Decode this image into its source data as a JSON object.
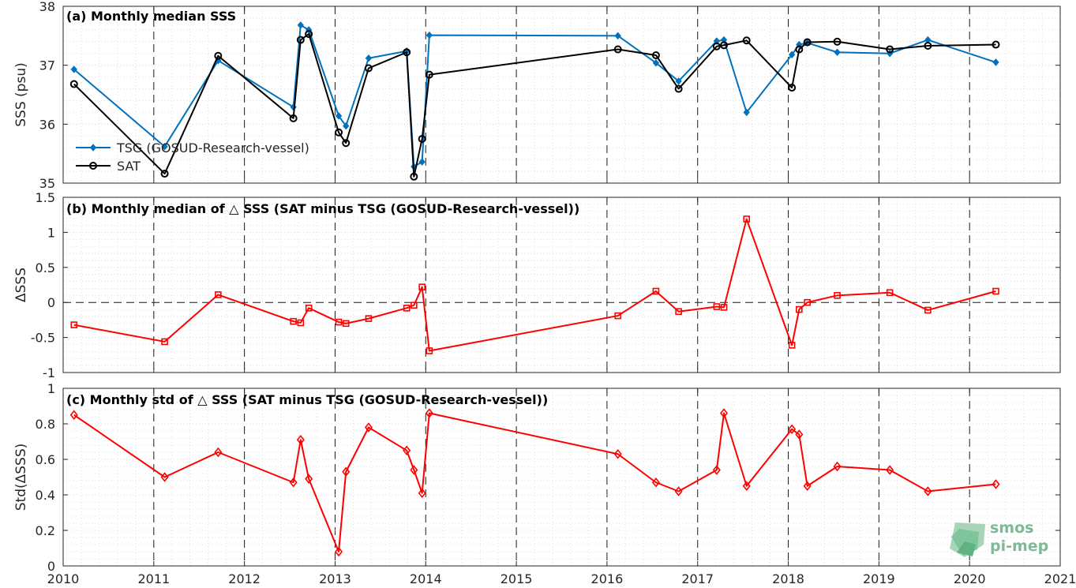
{
  "logo": {
    "line1": "smos",
    "line2": "pi-mep"
  },
  "chart_data": [
    {
      "type": "line",
      "title": "(a) Monthly median SSS",
      "ylabel": "SSS (psu)",
      "xlim": [
        2010,
        2021
      ],
      "ylim": [
        35,
        38
      ],
      "yticks": [
        35,
        36,
        37,
        38
      ],
      "ytick_labels": [
        "35",
        "36",
        "37",
        "38"
      ],
      "grid": true,
      "legend_position": "lower-left",
      "series": [
        {
          "name": "TSG (GOSUD-Research-vessel)",
          "color": "#0072BD",
          "marker": "diamond",
          "x": [
            2010.12,
            2011.12,
            2011.71,
            2012.54,
            2012.62,
            2012.71,
            2013.04,
            2013.12,
            2013.37,
            2013.79,
            2013.87,
            2013.96,
            2014.04,
            2016.12,
            2016.54,
            2016.79,
            2017.21,
            2017.29,
            2017.54,
            2018.04,
            2018.12,
            2018.21,
            2018.54,
            2019.12,
            2019.54,
            2020.29
          ],
          "values": [
            36.93,
            35.62,
            37.08,
            36.29,
            37.68,
            37.6,
            36.14,
            35.97,
            37.12,
            37.24,
            35.28,
            35.36,
            37.51,
            37.5,
            37.04,
            36.73,
            37.41,
            37.43,
            36.2,
            37.18,
            37.35,
            37.38,
            37.22,
            37.2,
            37.43,
            37.05
          ]
        },
        {
          "name": "SAT",
          "color": "#000000",
          "marker": "circle",
          "x": [
            2010.12,
            2011.12,
            2011.71,
            2012.54,
            2012.62,
            2012.71,
            2013.04,
            2013.12,
            2013.37,
            2013.79,
            2013.87,
            2013.96,
            2014.04,
            2016.12,
            2016.54,
            2016.79,
            2017.21,
            2017.29,
            2017.54,
            2018.04,
            2018.12,
            2018.21,
            2018.54,
            2019.12,
            2019.54,
            2020.29
          ],
          "values": [
            36.68,
            35.16,
            37.16,
            36.1,
            37.43,
            37.53,
            35.86,
            35.68,
            36.95,
            37.22,
            35.11,
            35.75,
            36.84,
            37.27,
            37.17,
            36.6,
            37.32,
            37.34,
            37.42,
            36.62,
            37.27,
            37.39,
            37.4,
            37.27,
            37.33,
            37.35
          ]
        }
      ]
    },
    {
      "type": "line",
      "title": "(b) Monthly median of △ SSS (SAT minus TSG (GOSUD-Research-vessel))",
      "ylabel": "ΔSSS",
      "xlim": [
        2010,
        2021
      ],
      "ylim": [
        -1,
        1.5
      ],
      "yticks": [
        -1,
        -0.5,
        0,
        0.5,
        1,
        1.5
      ],
      "ytick_labels": [
        "-1",
        "-0.5",
        "0",
        "0.5",
        "1",
        "1.5"
      ],
      "grid": true,
      "zero_line": true,
      "series": [
        {
          "color": "#FF0000",
          "marker": "square",
          "x": [
            2010.12,
            2011.12,
            2011.71,
            2012.54,
            2012.62,
            2012.71,
            2013.04,
            2013.12,
            2013.37,
            2013.79,
            2013.87,
            2013.96,
            2014.04,
            2016.12,
            2016.54,
            2016.79,
            2017.21,
            2017.29,
            2017.54,
            2018.04,
            2018.12,
            2018.21,
            2018.54,
            2019.12,
            2019.54,
            2020.29
          ],
          "values": [
            -0.32,
            -0.56,
            0.11,
            -0.27,
            -0.29,
            -0.08,
            -0.28,
            -0.3,
            -0.23,
            -0.08,
            -0.04,
            0.22,
            -0.69,
            -0.19,
            0.16,
            -0.13,
            -0.06,
            -0.07,
            1.19,
            -0.61,
            -0.1,
            0.0,
            0.1,
            0.14,
            -0.11,
            0.16
          ]
        }
      ]
    },
    {
      "type": "line",
      "title": "(c) Monthly std of △ SSS (SAT minus TSG (GOSUD-Research-vessel))",
      "ylabel": "Std(ΔSSS)",
      "xlim": [
        2010,
        2021
      ],
      "ylim": [
        0,
        1
      ],
      "yticks": [
        0,
        0.2,
        0.4,
        0.6,
        0.8,
        1
      ],
      "ytick_labels": [
        "0",
        "0.2",
        "0.4",
        "0.6",
        "0.8",
        "1"
      ],
      "xticks": [
        2010,
        2011,
        2012,
        2013,
        2014,
        2015,
        2016,
        2017,
        2018,
        2019,
        2020,
        2021
      ],
      "xtick_labels": [
        "2010",
        "2011",
        "2012",
        "2013",
        "2014",
        "2015",
        "2016",
        "2017",
        "2018",
        "2019",
        "2020",
        "2021"
      ],
      "grid": true,
      "series": [
        {
          "color": "#FF0000",
          "marker": "diamond",
          "x": [
            2010.12,
            2011.12,
            2011.71,
            2012.54,
            2012.62,
            2012.71,
            2013.04,
            2013.12,
            2013.37,
            2013.79,
            2013.87,
            2013.96,
            2014.04,
            2016.12,
            2016.54,
            2016.79,
            2017.21,
            2017.29,
            2017.54,
            2018.04,
            2018.12,
            2018.21,
            2018.54,
            2019.12,
            2019.54,
            2020.29
          ],
          "values": [
            0.85,
            0.5,
            0.64,
            0.47,
            0.71,
            0.49,
            0.08,
            0.53,
            0.78,
            0.65,
            0.54,
            0.41,
            0.86,
            0.63,
            0.47,
            0.42,
            0.54,
            0.86,
            0.45,
            0.77,
            0.74,
            0.45,
            0.56,
            0.54,
            0.42,
            0.46
          ]
        }
      ]
    }
  ]
}
